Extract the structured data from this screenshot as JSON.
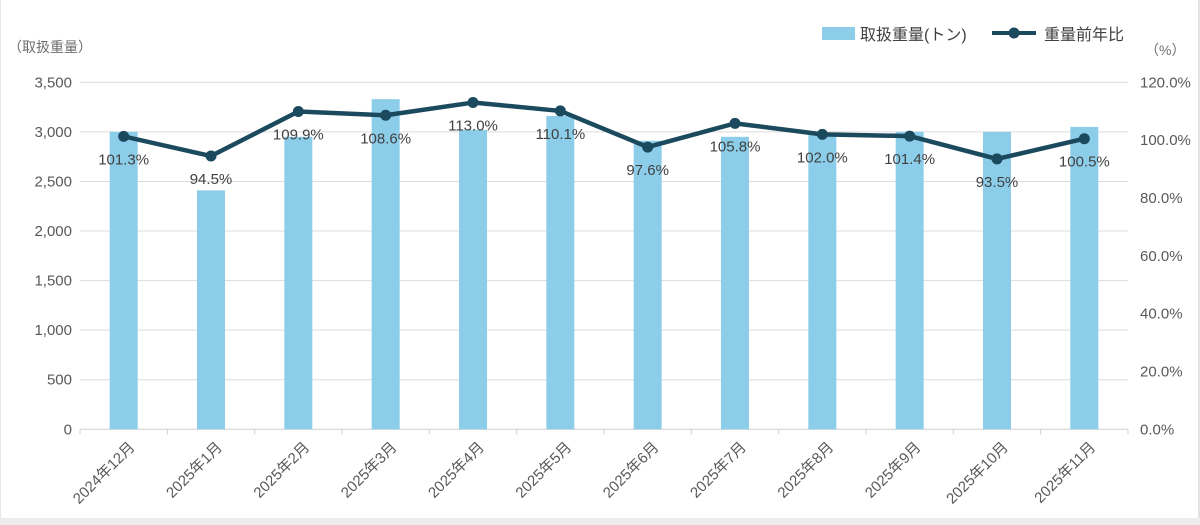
{
  "legend": {
    "bar_label": "取扱重量(トン)",
    "line_label": "重量前年比"
  },
  "chart_data": {
    "type": "combo-bar-line",
    "title": "",
    "categories": [
      "2024年12月",
      "2025年1月",
      "2025年2月",
      "2025年3月",
      "2025年4月",
      "2025年5月",
      "2025年6月",
      "2025年7月",
      "2025年8月",
      "2025年9月",
      "2025年10月",
      "2025年11月"
    ],
    "series": [
      {
        "name": "取扱重量(トン)",
        "type": "bar",
        "axis": "left",
        "color": "#8CCEEA",
        "values": [
          3000,
          2410,
          2950,
          3330,
          3020,
          3160,
          2910,
          2950,
          2970,
          3000,
          3000,
          3050
        ]
      },
      {
        "name": "重量前年比",
        "type": "line",
        "axis": "right",
        "color": "#1B4A5E",
        "values": [
          101.3,
          94.5,
          109.9,
          108.6,
          113.0,
          110.1,
          97.6,
          105.8,
          102.0,
          101.4,
          93.5,
          100.5
        ],
        "labels": [
          "101.3%",
          "94.5%",
          "109.9%",
          "108.6%",
          "113.0%",
          "110.1%",
          "97.6%",
          "105.8%",
          "102.0%",
          "101.4%",
          "93.5%",
          "100.5%"
        ]
      }
    ],
    "left_axis": {
      "unit": "（取扱重量）",
      "min": 0,
      "max": 3500,
      "step": 500,
      "tick_labels": [
        "0",
        "500",
        "1,000",
        "1,500",
        "2,000",
        "2,500",
        "3,000",
        "3,500"
      ]
    },
    "right_axis": {
      "unit": "（%）",
      "min": 0,
      "max": 120,
      "step": 20,
      "tick_labels": [
        "0.0%",
        "20.0%",
        "40.0%",
        "60.0%",
        "80.0%",
        "100.0%",
        "120.0%"
      ]
    },
    "legend_position": "top-right",
    "grid": true
  },
  "colors": {
    "bar": "#8CCEEA",
    "line": "#1B4A5E",
    "grid": "#dcdcdc",
    "axis": "#cfcfcf",
    "tick_text": "#595959",
    "data_label_text": "#404040",
    "bottom_strip": "#ececec"
  }
}
